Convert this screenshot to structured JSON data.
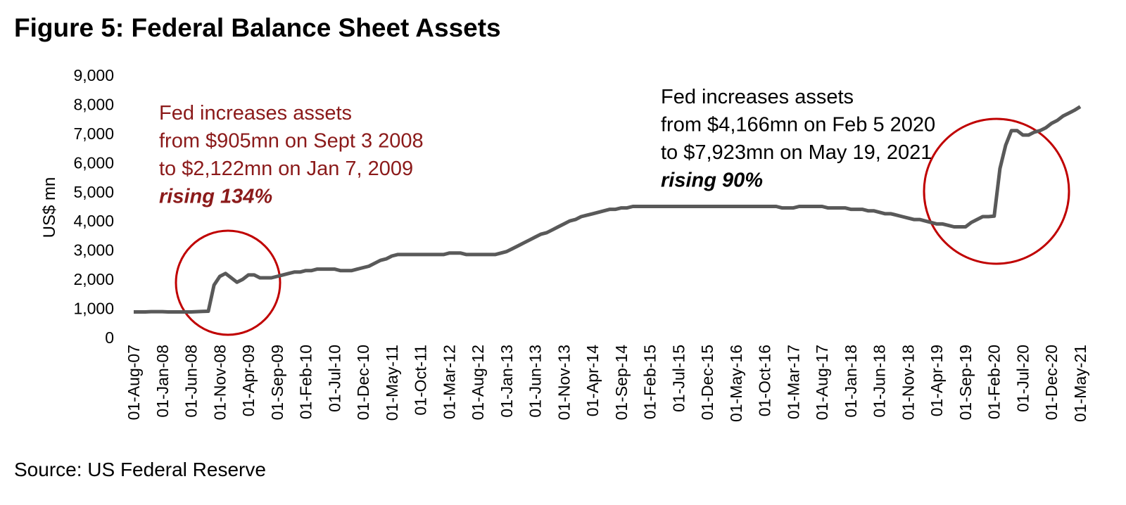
{
  "chart_data": {
    "type": "line",
    "title": "Figure 5: Federal Balance Sheet Assets",
    "y_label": "US$ mn",
    "source": "Source: US Federal Reserve",
    "annotations": [
      {
        "lines": [
          "Fed increases assets",
          "from $905mn on Sept 3 2008",
          "to $2,122mn on Jan 7, 2009",
          "rising 134%"
        ],
        "color": "#8b1a1a"
      },
      {
        "lines": [
          "Fed increases assets",
          "from $4,166mn on Feb 5 2020",
          "to $7,923mn on May 19, 2021",
          "rising 90%"
        ],
        "color": "#000000"
      }
    ],
    "categories": [
      "01-Aug-07",
      null,
      null,
      null,
      null,
      "01-Jan-08",
      null,
      null,
      null,
      null,
      "01-Jun-08",
      null,
      null,
      null,
      null,
      "01-Nov-08",
      null,
      null,
      null,
      null,
      "01-Apr-09",
      null,
      null,
      null,
      null,
      "01-Sep-09",
      null,
      null,
      null,
      null,
      "01-Feb-10",
      null,
      null,
      null,
      null,
      "01-Jul-10",
      null,
      null,
      null,
      null,
      "01-Dec-10",
      null,
      null,
      null,
      null,
      "01-May-11",
      null,
      null,
      null,
      null,
      "01-Oct-11",
      null,
      null,
      null,
      null,
      "01-Mar-12",
      null,
      null,
      null,
      null,
      "01-Aug-12",
      null,
      null,
      null,
      null,
      "01-Jan-13",
      null,
      null,
      null,
      null,
      "01-Jun-13",
      null,
      null,
      null,
      null,
      "01-Nov-13",
      null,
      null,
      null,
      null,
      "01-Apr-14",
      null,
      null,
      null,
      null,
      "01-Sep-14",
      null,
      null,
      null,
      null,
      "01-Feb-15",
      null,
      null,
      null,
      null,
      "01-Jul-15",
      null,
      null,
      null,
      null,
      "01-Dec-15",
      null,
      null,
      null,
      null,
      "01-May-16",
      null,
      null,
      null,
      null,
      "01-Oct-16",
      null,
      null,
      null,
      null,
      "01-Mar-17",
      null,
      null,
      null,
      null,
      "01-Aug-17",
      null,
      null,
      null,
      null,
      "01-Jan-18",
      null,
      null,
      null,
      null,
      "01-Jun-18",
      null,
      null,
      null,
      null,
      "01-Nov-18",
      null,
      null,
      null,
      null,
      "01-Apr-19",
      null,
      null,
      null,
      null,
      "01-Sep-19",
      null,
      null,
      null,
      null,
      "01-Feb-20",
      null,
      null,
      null,
      null,
      "01-Jul-20",
      null,
      null,
      null,
      null,
      "01-Dec-20",
      null,
      null,
      null,
      null,
      "01-May-21"
    ],
    "series": [
      {
        "color": "#595959",
        "values": [
          880,
          880,
          880,
          890,
          890,
          890,
          880,
          880,
          880,
          880,
          880,
          890,
          900,
          905,
          1800,
          2100,
          2200,
          2050,
          1900,
          2000,
          2150,
          2150,
          2050,
          2050,
          2050,
          2100,
          2150,
          2200,
          2250,
          2250,
          2300,
          2300,
          2350,
          2350,
          2350,
          2350,
          2300,
          2300,
          2300,
          2350,
          2400,
          2450,
          2550,
          2650,
          2700,
          2800,
          2850,
          2850,
          2850,
          2850,
          2850,
          2850,
          2850,
          2850,
          2850,
          2900,
          2900,
          2900,
          2850,
          2850,
          2850,
          2850,
          2850,
          2850,
          2900,
          2950,
          3050,
          3150,
          3250,
          3350,
          3450,
          3550,
          3600,
          3700,
          3800,
          3900,
          4000,
          4050,
          4150,
          4200,
          4250,
          4300,
          4350,
          4400,
          4400,
          4450,
          4450,
          4500,
          4500,
          4500,
          4500,
          4500,
          4500,
          4500,
          4500,
          4500,
          4500,
          4500,
          4500,
          4500,
          4500,
          4500,
          4500,
          4500,
          4500,
          4500,
          4500,
          4500,
          4500,
          4500,
          4500,
          4500,
          4500,
          4450,
          4450,
          4450,
          4500,
          4500,
          4500,
          4500,
          4500,
          4450,
          4450,
          4450,
          4450,
          4400,
          4400,
          4400,
          4350,
          4350,
          4300,
          4250,
          4250,
          4200,
          4150,
          4100,
          4050,
          4050,
          4000,
          3950,
          3900,
          3900,
          3850,
          3800,
          3800,
          3800,
          3950,
          4050,
          4150,
          4150,
          4166,
          5800,
          6600,
          7100,
          7100,
          6950,
          6950,
          7050,
          7100,
          7200,
          7350,
          7450,
          7600,
          7700,
          7800,
          7923
        ]
      }
    ],
    "ylim": [
      0,
      9000
    ],
    "yticks": [
      0,
      {
        "value": 1000,
        "label": "1,000"
      },
      {
        "value": 2000,
        "label": "2,000"
      },
      {
        "value": 3000,
        "label": "3,000"
      },
      {
        "value": 4000,
        "label": "4,000"
      },
      {
        "value": 5000,
        "label": "5,000"
      },
      {
        "value": 6000,
        "label": "6,000"
      },
      {
        "value": 7000,
        "label": "7,000"
      },
      {
        "value": 8000,
        "label": "8,000"
      },
      {
        "value": 9000,
        "label": "9,000"
      }
    ]
  }
}
